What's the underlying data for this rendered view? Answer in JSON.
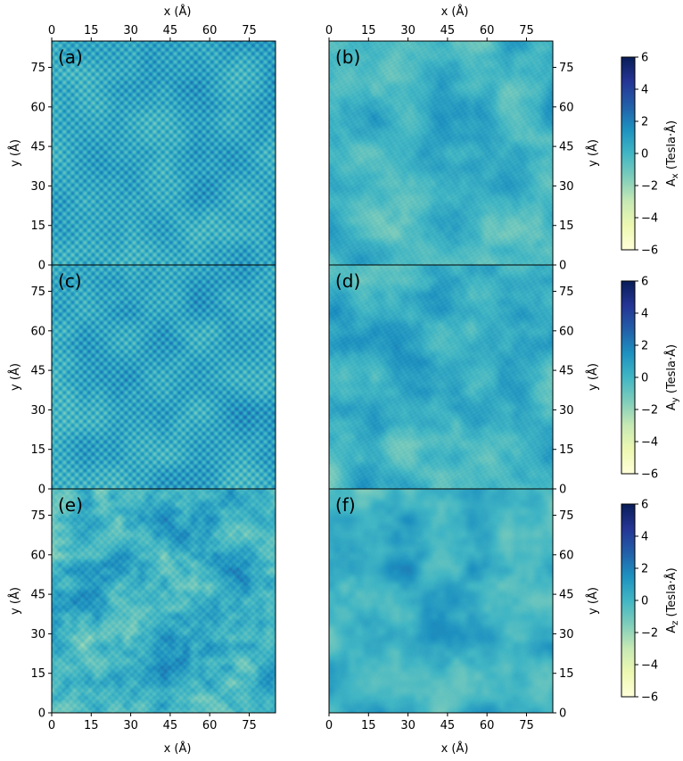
{
  "figure": {
    "panels": [
      {
        "label": "(a)",
        "row": 0,
        "col": 0,
        "pattern": "lattice",
        "seed": 11
      },
      {
        "label": "(b)",
        "row": 0,
        "col": 1,
        "pattern": "smooth",
        "seed": 23
      },
      {
        "label": "(c)",
        "row": 1,
        "col": 0,
        "pattern": "lattice",
        "seed": 37
      },
      {
        "label": "(d)",
        "row": 1,
        "col": 1,
        "pattern": "smooth",
        "seed": 41
      },
      {
        "label": "(e)",
        "row": 2,
        "col": 0,
        "pattern": "mottled",
        "seed": 53
      },
      {
        "label": "(f)",
        "row": 2,
        "col": 1,
        "pattern": "mottled_smooth",
        "seed": 67
      }
    ],
    "colorbars": [
      {
        "label_main": "A",
        "label_sub": "x",
        "label_unit": " (Tesla·Å)"
      },
      {
        "label_main": "A",
        "label_sub": "y",
        "label_unit": " (Tesla·Å)"
      },
      {
        "label_main": "A",
        "label_sub": "z",
        "label_unit": " (Tesla·Å)"
      }
    ]
  },
  "chart_data": {
    "type": "heatmap",
    "xlabel": "x (Å)",
    "ylabel": "y (Å)",
    "xlim": [
      0,
      85
    ],
    "ylim": [
      0,
      85
    ],
    "xticks": [
      0,
      15,
      30,
      45,
      60,
      75
    ],
    "yticks": [
      0,
      15,
      30,
      45,
      60,
      75
    ],
    "colorbar_range": [
      -6,
      6
    ],
    "colorbar_ticks": [
      -6,
      -4,
      -2,
      0,
      2,
      4,
      6
    ],
    "colormap": [
      "#ffffd9",
      "#edf8b1",
      "#c7e9b4",
      "#7fcdbb",
      "#41b6c4",
      "#1d91c0",
      "#225ea8",
      "#253494",
      "#081d58"
    ],
    "typical_value_range": [
      -2,
      2
    ]
  }
}
